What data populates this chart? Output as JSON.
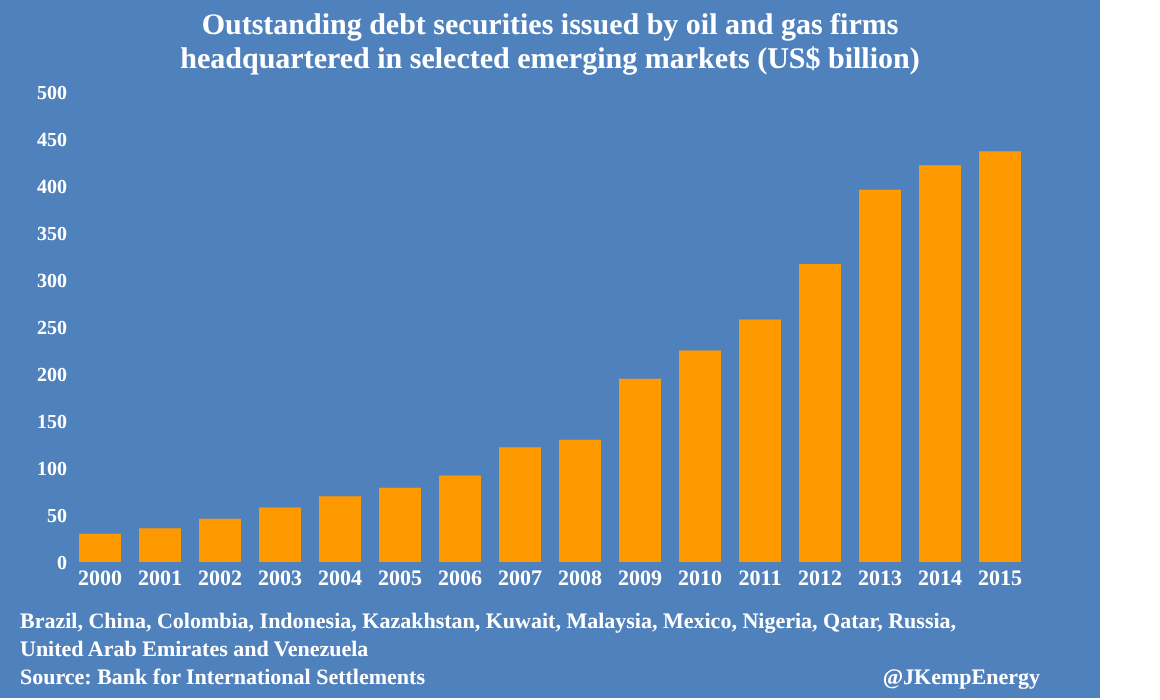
{
  "chart_data": {
    "type": "bar",
    "title": [
      "Outstanding debt securities issued by oil and gas firms",
      "headquartered in selected emerging markets (US$ billion)"
    ],
    "categories": [
      "2000",
      "2001",
      "2002",
      "2003",
      "2004",
      "2005",
      "2006",
      "2007",
      "2008",
      "2009",
      "2010",
      "2011",
      "2012",
      "2013",
      "2014",
      "2015"
    ],
    "values": [
      30,
      36,
      46,
      58,
      70,
      79,
      92,
      122,
      130,
      195,
      225,
      258,
      317,
      396,
      422,
      437
    ],
    "color": "#ff9900",
    "ylim": [
      0,
      500
    ],
    "yticks": [
      0,
      50,
      100,
      150,
      200,
      250,
      300,
      350,
      400,
      450,
      500
    ],
    "grid": false,
    "annotations": [
      "Brazil, China, Colombia, Indonesia, Kazakhstan, Kuwait, Malaysia, Mexico, Nigeria, Qatar, Russia, United Arab Emirates and Venezuela",
      "Source: Bank for International Settlements",
      "@JKempEnergy"
    ]
  }
}
